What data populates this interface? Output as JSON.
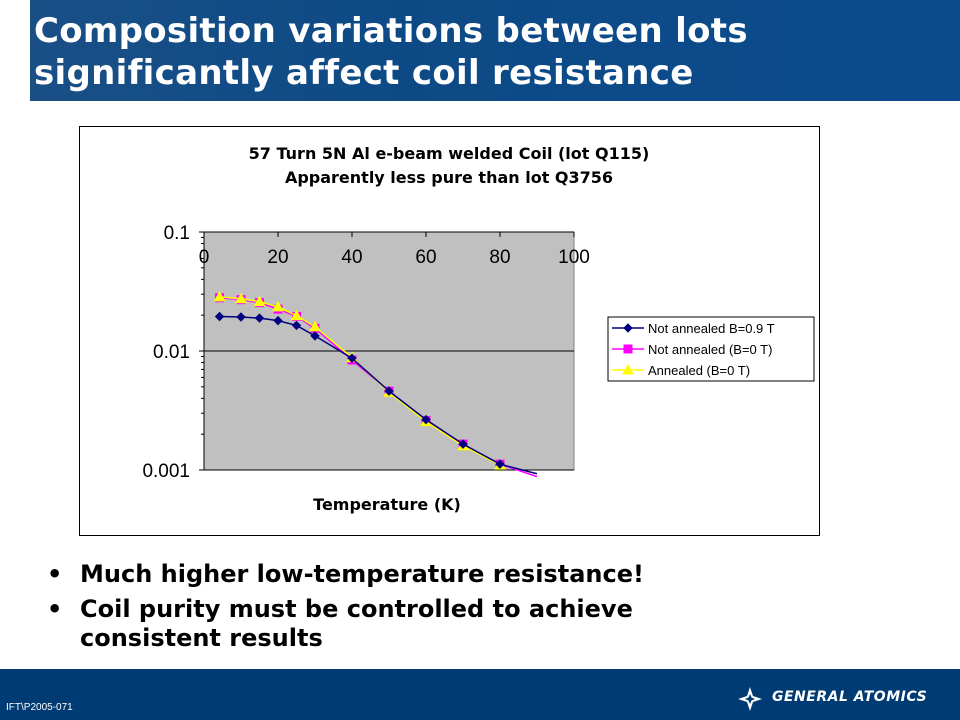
{
  "slide": {
    "title_line1": "Composition variations between lots",
    "title_line2": "significantly affect coil resistance",
    "bullets": [
      "Much higher low-temperature resistance!",
      "Coil purity  must be controlled to achieve consistent results"
    ],
    "bullet_line2_a": "Coil purity  must be controlled to achieve",
    "bullet_line2_b": "consistent results",
    "footer_id": "IFT\\P2005-071",
    "brand": "GENERAL ATOMICS",
    "colors": {
      "header": "#0b4b8e",
      "footer": "#003b73",
      "plot_bg": "#c0c0c0"
    }
  },
  "chart_data": {
    "type": "line",
    "title_line1": "57 Turn 5N Al e-beam welded Coil (lot Q115)",
    "title_line2": "Apparently less pure than lot Q3756",
    "xlabel": "Temperature (K)",
    "ylabel": "",
    "xlim": [
      0,
      100
    ],
    "ylim": [
      0.001,
      0.1
    ],
    "yscale": "log",
    "xticks": [
      "0",
      "20",
      "40",
      "60",
      "80",
      "100"
    ],
    "yticks": [
      "0.1",
      "0.01",
      "0.001"
    ],
    "legend_position": "right",
    "series": [
      {
        "name": "Not annealed B=0.9 T",
        "color": "#000080",
        "marker": "diamond",
        "x": [
          4.2,
          10,
          15,
          20,
          25,
          30,
          40,
          50,
          60,
          70,
          80,
          90
        ],
        "y": [
          0.0195,
          0.0193,
          0.0189,
          0.018,
          0.0164,
          0.0134,
          0.0087,
          0.0046,
          0.00265,
          0.00165,
          0.00112,
          0.00093
        ]
      },
      {
        "name": "Not annealed (B=0 T)",
        "color": "#ff00ff",
        "marker": "square",
        "x": [
          4.2,
          10,
          15,
          20,
          25,
          30,
          40,
          50,
          60,
          70,
          80,
          90
        ],
        "y": [
          0.028,
          0.027,
          0.0255,
          0.0225,
          0.0195,
          0.0155,
          0.0084,
          0.0046,
          0.0026,
          0.00165,
          0.00112,
          0.00088
        ]
      },
      {
        "name": "Annealed (B=0 T)",
        "color": "#ffff00",
        "marker": "triangle",
        "x": [
          4.2,
          10,
          15,
          20,
          25,
          30,
          40,
          50,
          60,
          70,
          80
        ],
        "y": [
          0.0285,
          0.0275,
          0.026,
          0.0235,
          0.0198,
          0.016,
          0.0088,
          0.0045,
          0.00255,
          0.0016,
          0.0011
        ]
      }
    ]
  }
}
